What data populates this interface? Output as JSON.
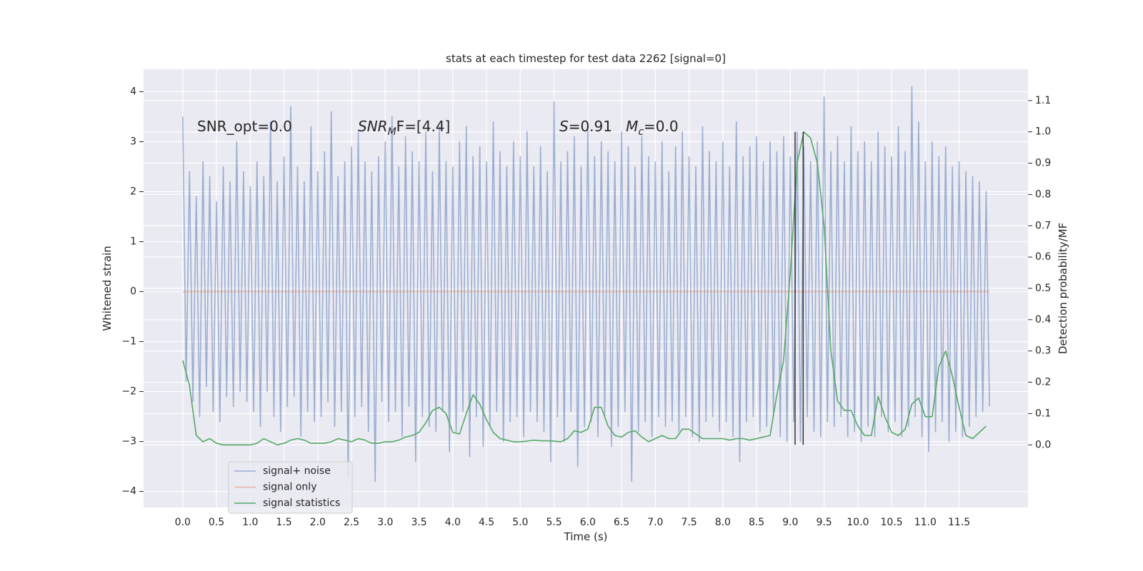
{
  "chart_data": {
    "type": "line",
    "title": "stats at each timestep for test data 2262 [signal=0]",
    "xlabel": "Time (s)",
    "ylabel": "Whitened strain",
    "y2label": "Detection probability/MF",
    "xlim": [
      -0.58,
      12.52
    ],
    "ylim": [
      -4.32,
      4.45
    ],
    "y2lim": [
      -0.2,
      1.2
    ],
    "xticks": [
      {
        "value": 0,
        "label": "0.0"
      },
      0.5,
      {
        "value": 1,
        "label": "1.0"
      },
      1.5,
      {
        "value": 2,
        "label": "2.0"
      },
      2.5,
      {
        "value": 3,
        "label": "3.0"
      },
      3.5,
      {
        "value": 4,
        "label": "4.0"
      },
      4.5,
      {
        "value": 5,
        "label": "5.0"
      },
      5.5,
      {
        "value": 6,
        "label": "6.0"
      },
      6.5,
      {
        "value": 7,
        "label": "7.0"
      },
      7.5,
      {
        "value": 8,
        "label": "8.0"
      },
      8.5,
      {
        "value": 9,
        "label": "9.0"
      },
      9.5,
      {
        "value": 10,
        "label": "10.0"
      },
      10.5,
      {
        "value": 11,
        "label": "11.0"
      },
      11.5
    ],
    "yticks": [
      {
        "value": -4,
        "label": "−4"
      },
      {
        "value": -3,
        "label": "−3"
      },
      {
        "value": -2,
        "label": "−2"
      },
      {
        "value": -1,
        "label": "−1"
      },
      0,
      1,
      2,
      3,
      4
    ],
    "y2ticks": [
      {
        "value": 0,
        "label": "0.0"
      },
      0.1,
      0.2,
      0.3,
      0.4,
      0.5,
      0.6,
      0.7,
      0.8,
      0.9,
      {
        "value": 1,
        "label": "1.0"
      },
      1.1
    ],
    "grid": true,
    "legend": "lower left",
    "series": [
      {
        "name": "signal+ noise",
        "color": "#4c72b0",
        "alpha": 0.5,
        "axis": "y",
        "x": [
          0,
          0.05,
          0.1,
          0.15,
          0.2,
          0.25,
          0.3,
          0.35,
          0.4,
          0.45,
          0.5,
          0.55,
          0.6,
          0.65,
          0.7,
          0.75,
          0.8,
          0.85,
          0.9,
          0.95,
          1,
          1.05,
          1.1,
          1.15,
          1.2,
          1.25,
          1.3,
          1.35,
          1.4,
          1.45,
          1.5,
          1.55,
          1.6,
          1.65,
          1.7,
          1.75,
          1.8,
          1.85,
          1.9,
          1.95,
          2,
          2.05,
          2.1,
          2.15,
          2.2,
          2.25,
          2.3,
          2.35,
          2.4,
          2.45,
          2.5,
          2.55,
          2.6,
          2.65,
          2.7,
          2.75,
          2.8,
          2.85,
          2.9,
          2.95,
          3,
          3.05,
          3.1,
          3.15,
          3.2,
          3.25,
          3.3,
          3.35,
          3.4,
          3.45,
          3.5,
          3.55,
          3.6,
          3.65,
          3.7,
          3.75,
          3.8,
          3.85,
          3.9,
          3.95,
          4,
          4.05,
          4.1,
          4.15,
          4.2,
          4.25,
          4.3,
          4.35,
          4.4,
          4.45,
          4.5,
          4.55,
          4.6,
          4.65,
          4.7,
          4.75,
          4.8,
          4.85,
          4.9,
          4.95,
          5,
          5.05,
          5.1,
          5.15,
          5.2,
          5.25,
          5.3,
          5.35,
          5.4,
          5.45,
          5.5,
          5.55,
          5.6,
          5.65,
          5.7,
          5.75,
          5.8,
          5.85,
          5.9,
          5.95,
          6,
          6.05,
          6.1,
          6.15,
          6.2,
          6.25,
          6.3,
          6.35,
          6.4,
          6.45,
          6.5,
          6.55,
          6.6,
          6.65,
          6.7,
          6.75,
          6.8,
          6.85,
          6.9,
          6.95,
          7,
          7.05,
          7.1,
          7.15,
          7.2,
          7.25,
          7.3,
          7.35,
          7.4,
          7.45,
          7.5,
          7.55,
          7.6,
          7.65,
          7.7,
          7.75,
          7.8,
          7.85,
          7.9,
          7.95,
          8,
          8.05,
          8.1,
          8.15,
          8.2,
          8.25,
          8.3,
          8.35,
          8.4,
          8.45,
          8.5,
          8.55,
          8.6,
          8.65,
          8.7,
          8.75,
          8.8,
          8.85,
          8.9,
          8.95,
          9,
          9.05,
          9.1,
          9.15,
          9.2,
          9.25,
          9.3,
          9.35,
          9.4,
          9.45,
          9.5,
          9.55,
          9.6,
          9.65,
          9.7,
          9.75,
          9.8,
          9.85,
          9.9,
          9.95,
          10,
          10.05,
          10.1,
          10.15,
          10.2,
          10.25,
          10.3,
          10.35,
          10.4,
          10.45,
          10.5,
          10.55,
          10.6,
          10.65,
          10.7,
          10.75,
          10.8,
          10.85,
          10.9,
          10.95,
          11,
          11.05,
          11.1,
          11.15,
          11.2,
          11.25,
          11.3,
          11.35,
          11.4,
          11.45,
          11.5,
          11.55,
          11.6,
          11.65,
          11.7,
          11.75,
          11.8,
          11.85,
          11.9,
          11.95
        ],
        "values": [
          3.5,
          -1.8,
          2.4,
          -2.2,
          1.9,
          -2.5,
          2.6,
          -1.9,
          2.3,
          -2.4,
          1.8,
          -2.6,
          2.5,
          -2.1,
          2.2,
          -2.3,
          3.0,
          -2.0,
          2.4,
          -2.2,
          2.1,
          -2.4,
          2.6,
          -2.7,
          2.3,
          -2.0,
          3.4,
          -2.5,
          2.2,
          -2.8,
          2.7,
          -2.3,
          3.7,
          -2.1,
          2.5,
          -2.9,
          2.2,
          -2.4,
          3.3,
          -2.6,
          2.4,
          -2.5,
          2.8,
          -2.2,
          3.6,
          -2.7,
          2.3,
          -2.4,
          2.6,
          -3.7,
          2.9,
          -2.5,
          3.2,
          -2.3,
          2.6,
          -2.8,
          2.4,
          -3.8,
          2.7,
          -2.2,
          3.0,
          -2.6,
          3.5,
          -2.4,
          2.5,
          -2.9,
          3.1,
          -2.3,
          2.8,
          -3.4,
          2.6,
          -2.5,
          3.2,
          -2.7,
          2.4,
          -2.8,
          3.3,
          -2.4,
          2.6,
          -3.2,
          2.5,
          -2.8,
          3.0,
          -2.4,
          3.3,
          -3.3,
          2.7,
          -2.5,
          2.9,
          -3.1,
          2.6,
          -2.7,
          3.4,
          -2.4,
          2.8,
          -3.0,
          2.5,
          -2.6,
          3.0,
          -2.5,
          2.7,
          -2.9,
          3.2,
          -2.4,
          2.5,
          -2.6,
          2.9,
          -2.8,
          2.4,
          -3.4,
          3.8,
          -2.5,
          2.6,
          -3.0,
          2.8,
          -2.4,
          3.1,
          -3.5,
          2.5,
          -2.7,
          3.3,
          -2.6,
          2.7,
          -2.9,
          3.0,
          -2.5,
          2.8,
          -3.1,
          2.6,
          -2.7,
          3.2,
          -2.4,
          2.9,
          -3.8,
          2.5,
          -2.8,
          3.1,
          -2.6,
          2.7,
          -2.9,
          2.6,
          -2.5,
          3.0,
          -2.7,
          2.4,
          -2.6,
          2.9,
          -2.8,
          3.2,
          -2.5,
          2.7,
          -2.9,
          2.5,
          -3.0,
          3.3,
          -2.6,
          2.8,
          -2.5,
          2.6,
          -2.8,
          3.0,
          -2.6,
          2.5,
          -2.9,
          3.4,
          -3.4,
          2.7,
          -2.6,
          2.9,
          -2.5,
          3.1,
          -2.8,
          2.6,
          -2.7,
          3.0,
          -2.5,
          2.8,
          -2.9,
          3.1,
          -3.0,
          2.7,
          -2.6,
          3.2,
          -3.0,
          2.9,
          -2.5,
          2.6,
          -2.8,
          3.0,
          -2.9,
          3.9,
          -2.6,
          2.8,
          -2.7,
          3.1,
          -2.5,
          2.6,
          -2.9,
          3.3,
          -2.8,
          2.8,
          -3.0,
          3.0,
          -2.7,
          2.6,
          -2.9,
          3.2,
          -2.5,
          2.9,
          -2.8,
          2.7,
          -2.6,
          3.3,
          -2.9,
          2.8,
          -2.7,
          4.1,
          -2.5,
          3.4,
          -2.9,
          2.6,
          -3.2,
          3.0,
          -2.8,
          2.7,
          -2.6,
          2.9,
          -3.0,
          2.5,
          -2.8,
          2.6,
          -2.9,
          2.4,
          -2.7,
          2.3,
          -2.5,
          2.2,
          -2.4,
          2.0,
          -2.3
        ]
      },
      {
        "name": "signal only",
        "color": "#dd8452",
        "alpha": 0.5,
        "axis": "y",
        "x": [
          0,
          11.95
        ],
        "values": [
          0,
          0
        ]
      },
      {
        "name": "signal statistics",
        "color": "#55a868",
        "alpha": 1,
        "axis": "y2",
        "x": [
          0,
          0.1,
          0.2,
          0.3,
          0.4,
          0.5,
          0.6,
          0.7,
          0.8,
          0.9,
          1,
          1.1,
          1.2,
          1.3,
          1.4,
          1.5,
          1.6,
          1.7,
          1.8,
          1.9,
          2,
          2.1,
          2.2,
          2.3,
          2.4,
          2.5,
          2.6,
          2.7,
          2.8,
          2.9,
          3,
          3.1,
          3.2,
          3.3,
          3.4,
          3.5,
          3.6,
          3.7,
          3.8,
          3.9,
          4,
          4.1,
          4.2,
          4.3,
          4.4,
          4.5,
          4.6,
          4.7,
          4.8,
          4.9,
          5,
          5.1,
          5.2,
          5.3,
          5.4,
          5.5,
          5.6,
          5.7,
          5.8,
          5.9,
          6,
          6.1,
          6.2,
          6.3,
          6.4,
          6.5,
          6.6,
          6.7,
          6.8,
          6.9,
          7,
          7.1,
          7.2,
          7.3,
          7.4,
          7.5,
          7.6,
          7.7,
          7.8,
          7.9,
          8,
          8.1,
          8.2,
          8.3,
          8.4,
          8.5,
          8.6,
          8.7,
          8.8,
          8.9,
          9,
          9.1,
          9.2,
          9.3,
          9.4,
          9.5,
          9.6,
          9.7,
          9.8,
          9.9,
          10,
          10.1,
          10.2,
          10.3,
          10.4,
          10.5,
          10.6,
          10.7,
          10.8,
          10.9,
          11,
          11.1,
          11.2,
          11.3,
          11.4,
          11.5,
          11.6,
          11.7,
          11.8,
          11.9
        ],
        "values": [
          0.27,
          0.19,
          0.03,
          0.01,
          0.02,
          0.005,
          0,
          0,
          0,
          0,
          0,
          0.005,
          0.02,
          0.01,
          0,
          0.005,
          0.015,
          0.02,
          0.015,
          0.005,
          0.005,
          0.005,
          0.01,
          0.02,
          0.015,
          0.01,
          0.02,
          0.015,
          0.005,
          0.005,
          0.01,
          0.01,
          0.015,
          0.025,
          0.03,
          0.04,
          0.07,
          0.11,
          0.12,
          0.1,
          0.04,
          0.035,
          0.1,
          0.16,
          0.13,
          0.08,
          0.04,
          0.02,
          0.015,
          0.01,
          0.01,
          0.012,
          0.015,
          0.013,
          0.013,
          0.012,
          0.01,
          0.02,
          0.045,
          0.04,
          0.05,
          0.12,
          0.12,
          0.06,
          0.03,
          0.025,
          0.04,
          0.045,
          0.025,
          0.01,
          0.02,
          0.03,
          0.02,
          0.02,
          0.05,
          0.05,
          0.035,
          0.02,
          0.02,
          0.02,
          0.02,
          0.015,
          0.02,
          0.02,
          0.015,
          0.02,
          0.025,
          0.03,
          0.16,
          0.27,
          0.55,
          0.9,
          1.0,
          0.98,
          0.9,
          0.7,
          0.3,
          0.14,
          0.11,
          0.11,
          0.06,
          0.03,
          0.03,
          0.155,
          0.09,
          0.04,
          0.03,
          0.05,
          0.13,
          0.15,
          0.09,
          0.09,
          0.25,
          0.3,
          0.22,
          0.12,
          0.03,
          0.02,
          0.04,
          0.06
        ]
      }
    ],
    "vlines": {
      "color": "#333333",
      "x": [
        9.07,
        9.19
      ],
      "y2min": 0,
      "y2max": 1
    },
    "annotations": [
      [
        {
          "t": "SNR_opt=0.0",
          "style": "normal"
        }
      ],
      [
        {
          "t": "SNR",
          "style": "italic"
        },
        {
          "t": "M",
          "style": "italic-sub"
        },
        {
          "t": "F=[4.4]",
          "style": "normal"
        }
      ],
      [
        {
          "t": "S",
          "style": "italic"
        },
        {
          "t": "=0.91   ",
          "style": "normal"
        },
        {
          "t": "M",
          "style": "italic"
        },
        {
          "t": "c",
          "style": "italic-sub"
        },
        {
          "t": "=0.0",
          "style": "normal"
        }
      ]
    ]
  }
}
